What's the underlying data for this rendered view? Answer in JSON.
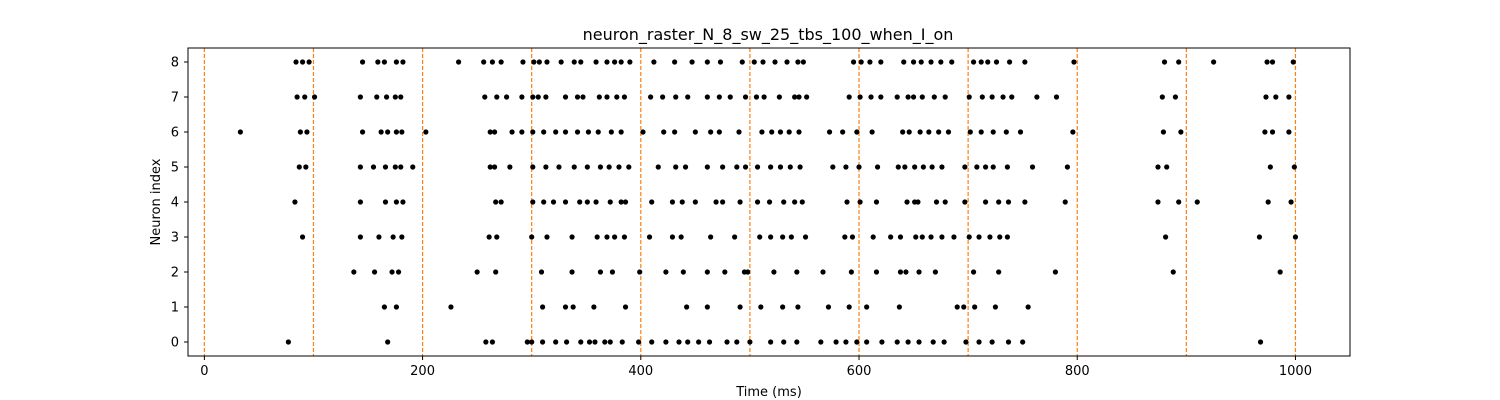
{
  "chart_data": {
    "type": "scatter",
    "title": "neuron_raster_N_8_sw_25_tbs_100_when_I_on",
    "xlabel": "Time (ms)",
    "ylabel": "Neuron index",
    "xlim": [
      -15,
      1050
    ],
    "ylim": [
      -0.4,
      8.4
    ],
    "xticks": [
      0,
      200,
      400,
      600,
      800,
      1000
    ],
    "yticks": [
      0,
      1,
      2,
      3,
      4,
      5,
      6,
      7,
      8
    ],
    "grid": false,
    "marker_color": "#000000",
    "vline_color": "#ff7f0e",
    "vlines": [
      0,
      100,
      200,
      300,
      400,
      500,
      600,
      700,
      800,
      900,
      1000
    ],
    "spikes": [
      {
        "neuron": 0,
        "times": [
          77,
          168,
          258,
          264,
          296,
          300,
          310,
          322,
          332,
          345,
          353,
          358,
          367,
          372,
          383,
          398,
          410,
          423,
          435,
          443,
          453,
          463,
          479,
          488,
          500,
          519,
          531,
          543,
          565,
          579,
          588,
          598,
          607,
          621,
          635,
          645,
          655,
          668,
          678,
          698,
          710,
          722,
          737,
          750,
          968
        ]
      },
      {
        "neuron": 1,
        "times": [
          165,
          176,
          226,
          310,
          331,
          338,
          357,
          386,
          442,
          461,
          491,
          510,
          530,
          544,
          572,
          591,
          607,
          637,
          690,
          696,
          706,
          725,
          755
        ]
      },
      {
        "neuron": 2,
        "times": [
          137,
          156,
          172,
          178,
          250,
          267,
          309,
          337,
          363,
          374,
          399,
          423,
          439,
          461,
          477,
          495,
          498,
          522,
          543,
          567,
          593,
          616,
          638,
          643,
          655,
          670,
          705,
          728,
          780,
          888,
          986
        ]
      },
      {
        "neuron": 3,
        "times": [
          90,
          143,
          160,
          173,
          181,
          261,
          268,
          300,
          314,
          337,
          360,
          369,
          376,
          385,
          408,
          429,
          437,
          464,
          486,
          509,
          519,
          530,
          538,
          551,
          587,
          594,
          613,
          629,
          638,
          652,
          658,
          666,
          676,
          687,
          701,
          710,
          720,
          729,
          736,
          881,
          967,
          1000
        ]
      },
      {
        "neuron": 4,
        "times": [
          83,
          143,
          166,
          176,
          182,
          267,
          272,
          301,
          311,
          320,
          331,
          344,
          351,
          359,
          372,
          382,
          386,
          410,
          429,
          438,
          450,
          469,
          475,
          491,
          507,
          518,
          531,
          541,
          548,
          589,
          601,
          616,
          644,
          651,
          654,
          671,
          679,
          697,
          716,
          728,
          737,
          752,
          789,
          874,
          893,
          910,
          975,
          996
        ]
      },
      {
        "neuron": 5,
        "times": [
          87,
          93,
          143,
          155,
          166,
          175,
          180,
          191,
          262,
          266,
          280,
          301,
          313,
          325,
          339,
          351,
          363,
          371,
          380,
          389,
          416,
          432,
          441,
          461,
          475,
          488,
          496,
          507,
          519,
          528,
          537,
          546,
          576,
          588,
          600,
          617,
          636,
          642,
          651,
          659,
          667,
          676,
          697,
          708,
          716,
          723,
          736,
          759,
          791,
          874,
          882,
          977,
          999
        ]
      },
      {
        "neuron": 6,
        "times": [
          33,
          88,
          94,
          145,
          162,
          168,
          176,
          181,
          203,
          262,
          266,
          282,
          291,
          301,
          311,
          322,
          331,
          342,
          352,
          361,
          373,
          382,
          402,
          421,
          431,
          450,
          464,
          472,
          490,
          511,
          520,
          528,
          536,
          545,
          573,
          585,
          598,
          612,
          640,
          646,
          656,
          664,
          673,
          682,
          702,
          712,
          723,
          735,
          748,
          796,
          879,
          895,
          972,
          979,
          994
        ]
      },
      {
        "neuron": 7,
        "times": [
          85,
          92,
          101,
          143,
          158,
          167,
          175,
          180,
          257,
          268,
          277,
          291,
          301,
          306,
          313,
          331,
          342,
          347,
          362,
          369,
          378,
          385,
          409,
          420,
          432,
          443,
          461,
          472,
          482,
          496,
          506,
          513,
          527,
          541,
          545,
          552,
          591,
          601,
          611,
          620,
          635,
          645,
          650,
          658,
          669,
          679,
          701,
          713,
          722,
          732,
          740,
          763,
          781,
          878,
          890,
          973,
          982,
          994
        ]
      },
      {
        "neuron": 8,
        "times": [
          84,
          90,
          96,
          145,
          159,
          165,
          176,
          182,
          233,
          256,
          264,
          272,
          292,
          302,
          307,
          314,
          327,
          339,
          345,
          359,
          369,
          376,
          382,
          390,
          412,
          431,
          447,
          461,
          473,
          493,
          504,
          512,
          523,
          534,
          544,
          549,
          595,
          602,
          610,
          620,
          641,
          650,
          657,
          666,
          675,
          685,
          705,
          712,
          718,
          726,
          738,
          752,
          797,
          880,
          893,
          925,
          974,
          979,
          998
        ]
      }
    ]
  }
}
